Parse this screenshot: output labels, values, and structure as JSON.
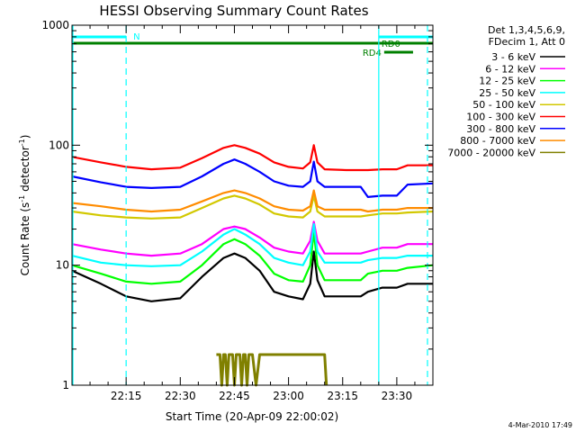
{
  "chart_data": {
    "type": "line",
    "title": "HESSI Observing Summary Count Rates",
    "xlabel": "Start Time (20-Apr-09 22:00:02)",
    "ylabel": "Count Rate (s-1 detector-1)",
    "ylabel_parts": {
      "a": "Count Rate (s",
      "sup1": "-1",
      "b": " detector",
      "sup2": "-1",
      "c": ")"
    },
    "y_scale": "log",
    "ylim": [
      1,
      1000
    ],
    "xlim_minutes": [
      0,
      100
    ],
    "x_ticks": [
      {
        "minute": 15,
        "label": "22:15"
      },
      {
        "minute": 30,
        "label": "22:30"
      },
      {
        "minute": 45,
        "label": "22:45"
      },
      {
        "minute": 60,
        "label": "23:00"
      },
      {
        "minute": 75,
        "label": "23:15"
      },
      {
        "minute": 90,
        "label": "23:30"
      }
    ],
    "y_ticks": [
      {
        "value": 1,
        "label": "1"
      },
      {
        "value": 10,
        "label": "10"
      },
      {
        "value": 100,
        "label": "100"
      },
      {
        "value": 1000,
        "label": "1000"
      }
    ],
    "legend": {
      "placement": "right",
      "header": [
        "Det 1,3,4,5,6,9,",
        "FDecim 1, Att 0"
      ]
    },
    "series": [
      {
        "name": "3 - 6 keV",
        "color": "#000000",
        "x": [
          0,
          8,
          15,
          22,
          30,
          36,
          42,
          45,
          48,
          52,
          56,
          60,
          64,
          66,
          67,
          68,
          70,
          76,
          80,
          82,
          86,
          90,
          93,
          100
        ],
        "y": [
          9.0,
          7.0,
          5.5,
          5.0,
          5.3,
          8.0,
          11.5,
          12.5,
          11.5,
          9.0,
          6.0,
          5.5,
          5.2,
          7.0,
          13.0,
          7.5,
          5.5,
          5.5,
          5.5,
          6.0,
          6.5,
          6.5,
          7.0,
          7.0
        ]
      },
      {
        "name": "6 - 12 keV",
        "color": "#ff00ff",
        "x": [
          0,
          8,
          15,
          22,
          30,
          36,
          42,
          45,
          48,
          52,
          56,
          60,
          64,
          66,
          67,
          68,
          70,
          76,
          80,
          82,
          86,
          90,
          93,
          100
        ],
        "y": [
          15,
          13.5,
          12.5,
          12,
          12.5,
          15,
          20,
          21,
          20,
          17,
          14,
          13,
          12.5,
          16,
          23,
          16,
          12.5,
          12.5,
          12.5,
          13,
          14,
          14,
          15,
          15
        ]
      },
      {
        "name": "12 - 25 keV",
        "color": "#00ff00",
        "x": [
          0,
          8,
          15,
          22,
          30,
          36,
          42,
          45,
          48,
          52,
          56,
          60,
          64,
          66,
          67,
          68,
          70,
          76,
          80,
          82,
          86,
          90,
          93,
          100
        ],
        "y": [
          10,
          8.5,
          7.3,
          7,
          7.3,
          10,
          15,
          16.5,
          15,
          12,
          8.5,
          7.5,
          7.3,
          10,
          19,
          10,
          7.5,
          7.5,
          7.5,
          8.5,
          9,
          9,
          9.5,
          10
        ]
      },
      {
        "name": "25 - 50 keV",
        "color": "#00ffff",
        "x": [
          0,
          8,
          15,
          22,
          30,
          36,
          42,
          45,
          48,
          52,
          56,
          60,
          64,
          66,
          67,
          68,
          70,
          76,
          80,
          82,
          86,
          90,
          93,
          100
        ],
        "y": [
          12,
          10.5,
          10,
          9.8,
          10,
          13,
          18,
          20,
          18,
          15,
          11.5,
          10.5,
          10,
          13,
          22,
          13,
          10.5,
          10.5,
          10.5,
          11,
          11.5,
          11.5,
          12,
          12
        ]
      },
      {
        "name": "50 - 100 keV",
        "color": "#d2c800",
        "x": [
          0,
          8,
          15,
          22,
          30,
          36,
          42,
          45,
          48,
          52,
          56,
          60,
          64,
          66,
          67,
          68,
          70,
          76,
          80,
          82,
          86,
          90,
          93,
          100
        ],
        "y": [
          28,
          26,
          25,
          24.5,
          25,
          30,
          36,
          38,
          36,
          32,
          27,
          25.5,
          25,
          28,
          38,
          28,
          25.5,
          25.5,
          25.5,
          26,
          27,
          27,
          27.5,
          28
        ]
      },
      {
        "name": "100 - 300 keV",
        "color": "#ff0000",
        "x": [
          0,
          8,
          15,
          22,
          30,
          36,
          42,
          45,
          48,
          52,
          56,
          60,
          64,
          66,
          67,
          68,
          70,
          76,
          80,
          82,
          86,
          90,
          93,
          100
        ],
        "y": [
          80,
          72,
          66,
          63,
          65,
          78,
          95,
          100,
          95,
          85,
          72,
          66,
          64,
          72,
          100,
          72,
          63,
          62,
          62,
          62,
          63,
          63,
          68,
          68
        ]
      },
      {
        "name": "300 - 800 keV",
        "color": "#0000ff",
        "x": [
          0,
          8,
          15,
          22,
          30,
          36,
          42,
          45,
          48,
          52,
          56,
          60,
          64,
          66,
          67,
          68,
          70,
          76,
          80,
          82,
          86,
          90,
          93,
          100
        ],
        "y": [
          55,
          49,
          45,
          44,
          45,
          55,
          70,
          76,
          70,
          60,
          50,
          46,
          45,
          50,
          73,
          50,
          45,
          45,
          45,
          37,
          38,
          38,
          47,
          48
        ]
      },
      {
        "name": "800 - 7000 keV",
        "color": "#ff8c00",
        "x": [
          0,
          8,
          15,
          22,
          30,
          36,
          42,
          45,
          48,
          52,
          56,
          60,
          64,
          66,
          67,
          68,
          70,
          76,
          80,
          82,
          86,
          90,
          93,
          100
        ],
        "y": [
          33,
          31,
          29,
          28,
          29,
          34,
          40,
          42,
          40,
          36,
          31,
          29,
          28.5,
          31,
          42,
          31,
          29,
          29,
          29,
          28,
          29,
          29,
          30,
          30
        ]
      },
      {
        "name": "7000 - 20000 keV",
        "color": "#808000",
        "x": [
          40,
          41,
          41.5,
          42,
          42.5,
          43,
          43.5,
          44,
          44.5,
          45,
          45.5,
          46,
          46.5,
          47,
          47.5,
          48,
          48.5,
          49,
          50,
          51,
          52,
          53,
          70,
          70.5
        ],
        "y": [
          1.8,
          1.8,
          1.0,
          1.8,
          1.8,
          1.0,
          1.8,
          1.8,
          1.8,
          1.0,
          1.8,
          1.8,
          1.8,
          1.0,
          1.8,
          1.8,
          1.0,
          1.8,
          1.8,
          1.0,
          1.8,
          1.8,
          1.8,
          1.0
        ]
      }
    ],
    "vertical_lines": [
      {
        "minute": 15.0,
        "color": "#00ffff",
        "style": "dashed"
      },
      {
        "minute": 85.0,
        "color": "#00ffff",
        "style": "solid"
      },
      {
        "minute": 98.5,
        "color": "#00ffff",
        "style": "dashed"
      }
    ],
    "status_bars": [
      {
        "label": "N",
        "color": "#00ffff",
        "start": 0,
        "end": 15.0,
        "level": 1,
        "label_at": "end"
      },
      {
        "label": "",
        "color": "#00ffff",
        "start": 85.0,
        "end": 100,
        "level": 1,
        "label_at": "none"
      },
      {
        "label": "",
        "color": "#008000",
        "start": 0,
        "end": 85.0,
        "level": 2,
        "label_at": "none"
      },
      {
        "label": "RD0",
        "color": "#008000",
        "start": 85.0,
        "end": 100,
        "level": 2,
        "label_at": "start"
      },
      {
        "label": "RD4",
        "color": "#008000",
        "start": 86.5,
        "end": 94.5,
        "level": 3,
        "label_at": "before"
      }
    ],
    "timestamp": "4-Mar-2010 17:49"
  }
}
